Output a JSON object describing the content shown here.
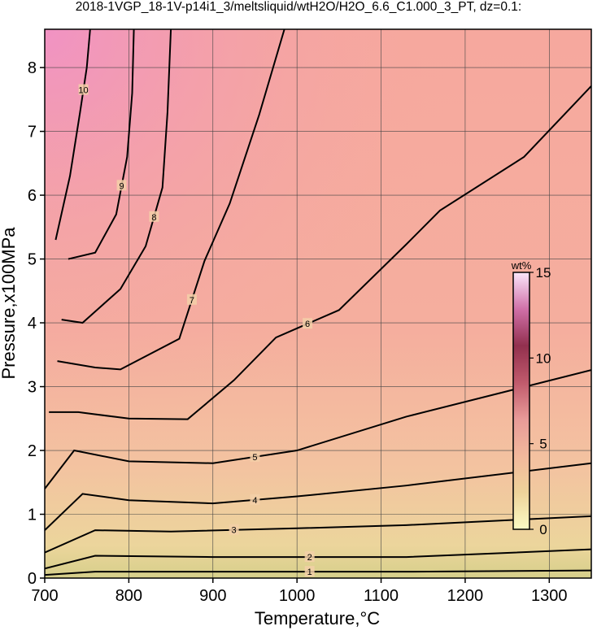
{
  "chart_data": {
    "type": "contour",
    "title": "2018-1VGP_18-1V-p14i1_3/meltsliquid/wtH2O/H2O_6.6_C1.000_3_PT, dz=0.1:",
    "x_label": "Temperature,°C",
    "y_label": "Pressure,x100MPa",
    "xlim": [
      700,
      1350
    ],
    "ylim": [
      0,
      8.6
    ],
    "xticks": [
      700,
      800,
      900,
      1000,
      1100,
      1200,
      1300
    ],
    "yticks": [
      0,
      1,
      2,
      3,
      4,
      5,
      6,
      7,
      8
    ],
    "grid": true,
    "line_color": "#000000",
    "contours": [
      {
        "level": 1,
        "x": [
          700,
          760,
          900,
          1130,
          1350
        ],
        "y": [
          0.05,
          0.1,
          0.1,
          0.1,
          0.12
        ]
      },
      {
        "level": 2,
        "x": [
          700,
          760,
          900,
          1130,
          1350
        ],
        "y": [
          0.15,
          0.35,
          0.33,
          0.33,
          0.45
        ]
      },
      {
        "level": 3,
        "x": [
          700,
          760,
          850,
          1000,
          1130,
          1350
        ],
        "y": [
          0.4,
          0.75,
          0.73,
          0.78,
          0.83,
          0.97
        ]
      },
      {
        "level": 4,
        "x": [
          700,
          745,
          800,
          900,
          1000,
          1130,
          1350
        ],
        "y": [
          0.75,
          1.32,
          1.22,
          1.17,
          1.28,
          1.45,
          1.8
        ]
      },
      {
        "level": 5,
        "x": [
          700,
          735,
          800,
          900,
          1000,
          1130,
          1350
        ],
        "y": [
          1.4,
          2.0,
          1.83,
          1.8,
          2.0,
          2.53,
          3.26
        ]
      },
      {
        "level": 6,
        "x": [
          705,
          740,
          800,
          870,
          925,
          975,
          1050,
          1130,
          1170,
          1270,
          1350
        ],
        "y": [
          2.6,
          2.6,
          2.5,
          2.49,
          3.1,
          3.77,
          4.2,
          5.23,
          5.76,
          6.6,
          7.71
        ]
      },
      {
        "level": 7,
        "x": [
          715,
          760,
          790,
          860,
          890,
          920,
          955,
          985
        ],
        "y": [
          3.4,
          3.3,
          3.27,
          3.75,
          4.97,
          5.87,
          7.26,
          8.6
        ]
      },
      {
        "level": 8,
        "x": [
          720,
          745,
          790,
          820,
          840,
          846,
          850
        ],
        "y": [
          4.05,
          4.0,
          4.53,
          5.2,
          6.12,
          7.3,
          8.6
        ]
      },
      {
        "level": 9,
        "x": [
          728,
          760,
          785,
          798,
          804,
          806
        ],
        "y": [
          5.0,
          5.1,
          5.7,
          6.6,
          7.6,
          8.6
        ]
      },
      {
        "level": 10,
        "x": [
          713,
          730,
          742,
          750,
          754
        ],
        "y": [
          5.3,
          6.3,
          7.3,
          8.0,
          8.6
        ]
      }
    ],
    "colorbar": {
      "label": "wt%",
      "lim": [
        0,
        15
      ],
      "ticks": [
        0,
        5,
        10,
        15
      ],
      "colors": [
        "#fbfbc4",
        "#eed39a",
        "#f2b89c",
        "#e89a98",
        "#c05a6c",
        "#92304e",
        "#d070a8",
        "#fbe6fb"
      ]
    }
  }
}
